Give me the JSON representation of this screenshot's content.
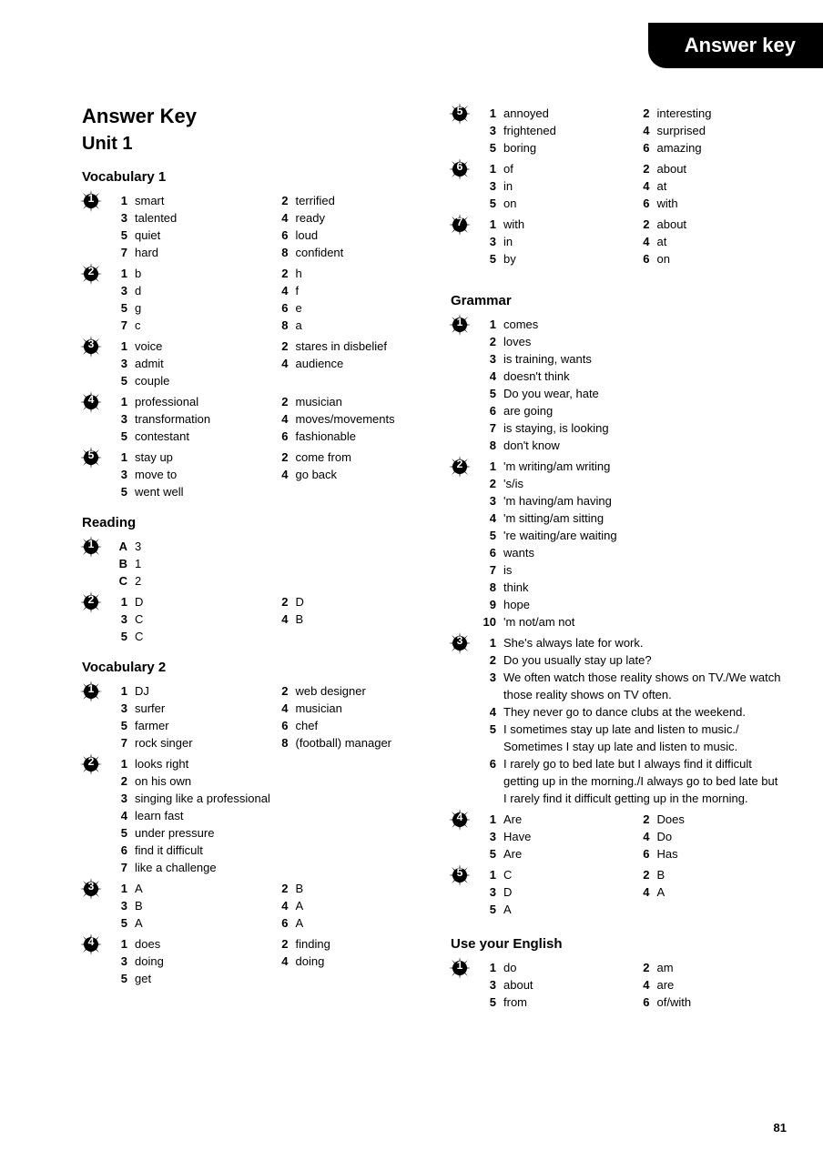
{
  "header_tab": "Answer key",
  "title": "Answer Key",
  "unit": "Unit 1",
  "page_number": "81",
  "left": {
    "vocab1": {
      "heading": "Vocabulary 1",
      "ex": [
        {
          "n": "1",
          "cols": [
            [
              {
                "n": "1",
                "v": "smart"
              },
              {
                "n": "3",
                "v": "talented"
              },
              {
                "n": "5",
                "v": "quiet"
              },
              {
                "n": "7",
                "v": "hard"
              }
            ],
            [
              {
                "n": "2",
                "v": "terrified"
              },
              {
                "n": "4",
                "v": "ready"
              },
              {
                "n": "6",
                "v": "loud"
              },
              {
                "n": "8",
                "v": "confident"
              }
            ]
          ]
        },
        {
          "n": "2",
          "cols": [
            [
              {
                "n": "1",
                "v": "b"
              },
              {
                "n": "3",
                "v": "d"
              },
              {
                "n": "5",
                "v": "g"
              },
              {
                "n": "7",
                "v": "c"
              }
            ],
            [
              {
                "n": "2",
                "v": "h"
              },
              {
                "n": "4",
                "v": "f"
              },
              {
                "n": "6",
                "v": "e"
              },
              {
                "n": "8",
                "v": "a"
              }
            ]
          ]
        },
        {
          "n": "3",
          "cols": [
            [
              {
                "n": "1",
                "v": "voice"
              },
              {
                "n": "3",
                "v": "admit"
              },
              {
                "n": "5",
                "v": "couple"
              }
            ],
            [
              {
                "n": "2",
                "v": "stares in disbelief"
              },
              {
                "n": "4",
                "v": "audience"
              }
            ]
          ]
        },
        {
          "n": "4",
          "cols": [
            [
              {
                "n": "1",
                "v": "professional"
              },
              {
                "n": "3",
                "v": "transformation"
              },
              {
                "n": "5",
                "v": "contestant"
              }
            ],
            [
              {
                "n": "2",
                "v": "musician"
              },
              {
                "n": "4",
                "v": "moves/movements"
              },
              {
                "n": "6",
                "v": "fashionable"
              }
            ]
          ]
        },
        {
          "n": "5",
          "cols": [
            [
              {
                "n": "1",
                "v": "stay up"
              },
              {
                "n": "3",
                "v": "move to"
              },
              {
                "n": "5",
                "v": "went well"
              }
            ],
            [
              {
                "n": "2",
                "v": "come from"
              },
              {
                "n": "4",
                "v": "go back"
              }
            ]
          ]
        }
      ]
    },
    "reading": {
      "heading": "Reading",
      "ex": [
        {
          "n": "1",
          "single": [
            {
              "n": "A",
              "v": "3"
            },
            {
              "n": "B",
              "v": "1"
            },
            {
              "n": "C",
              "v": "2"
            }
          ]
        },
        {
          "n": "2",
          "cols": [
            [
              {
                "n": "1",
                "v": "D"
              },
              {
                "n": "3",
                "v": "C"
              },
              {
                "n": "5",
                "v": "C"
              }
            ],
            [
              {
                "n": "2",
                "v": "D"
              },
              {
                "n": "4",
                "v": "B"
              }
            ]
          ]
        }
      ]
    },
    "vocab2": {
      "heading": "Vocabulary 2",
      "ex": [
        {
          "n": "1",
          "cols": [
            [
              {
                "n": "1",
                "v": "DJ"
              },
              {
                "n": "3",
                "v": "surfer"
              },
              {
                "n": "5",
                "v": "farmer"
              },
              {
                "n": "7",
                "v": "rock singer"
              }
            ],
            [
              {
                "n": "2",
                "v": "web designer"
              },
              {
                "n": "4",
                "v": "musician"
              },
              {
                "n": "6",
                "v": "chef"
              },
              {
                "n": "8",
                "v": "(football) manager"
              }
            ]
          ]
        },
        {
          "n": "2",
          "single": [
            {
              "n": "1",
              "v": "looks right"
            },
            {
              "n": "2",
              "v": "on his own"
            },
            {
              "n": "3",
              "v": "singing like a professional"
            },
            {
              "n": "4",
              "v": "learn fast"
            },
            {
              "n": "5",
              "v": "under pressure"
            },
            {
              "n": "6",
              "v": "find it difficult"
            },
            {
              "n": "7",
              "v": "like a challenge"
            }
          ]
        },
        {
          "n": "3",
          "cols": [
            [
              {
                "n": "1",
                "v": "A"
              },
              {
                "n": "3",
                "v": "B"
              },
              {
                "n": "5",
                "v": "A"
              }
            ],
            [
              {
                "n": "2",
                "v": "B"
              },
              {
                "n": "4",
                "v": "A"
              },
              {
                "n": "6",
                "v": "A"
              }
            ]
          ]
        },
        {
          "n": "4",
          "cols": [
            [
              {
                "n": "1",
                "v": "does"
              },
              {
                "n": "3",
                "v": "doing"
              },
              {
                "n": "5",
                "v": "get"
              }
            ],
            [
              {
                "n": "2",
                "v": "finding"
              },
              {
                "n": "4",
                "v": "doing"
              }
            ]
          ]
        }
      ]
    }
  },
  "right": {
    "top": {
      "ex": [
        {
          "n": "5",
          "cols": [
            [
              {
                "n": "1",
                "v": "annoyed"
              },
              {
                "n": "3",
                "v": "frightened"
              },
              {
                "n": "5",
                "v": "boring"
              }
            ],
            [
              {
                "n": "2",
                "v": "interesting"
              },
              {
                "n": "4",
                "v": "surprised"
              },
              {
                "n": "6",
                "v": "amazing"
              }
            ]
          ]
        },
        {
          "n": "6",
          "cols": [
            [
              {
                "n": "1",
                "v": "of"
              },
              {
                "n": "3",
                "v": "in"
              },
              {
                "n": "5",
                "v": "on"
              }
            ],
            [
              {
                "n": "2",
                "v": "about"
              },
              {
                "n": "4",
                "v": "at"
              },
              {
                "n": "6",
                "v": "with"
              }
            ]
          ]
        },
        {
          "n": "7",
          "cols": [
            [
              {
                "n": "1",
                "v": "with"
              },
              {
                "n": "3",
                "v": "in"
              },
              {
                "n": "5",
                "v": "by"
              }
            ],
            [
              {
                "n": "2",
                "v": "about"
              },
              {
                "n": "4",
                "v": "at"
              },
              {
                "n": "6",
                "v": "on"
              }
            ]
          ]
        }
      ]
    },
    "grammar": {
      "heading": "Grammar",
      "ex": [
        {
          "n": "1",
          "single": [
            {
              "n": "1",
              "v": "comes"
            },
            {
              "n": "2",
              "v": "loves"
            },
            {
              "n": "3",
              "v": "is training, wants"
            },
            {
              "n": "4",
              "v": "doesn't think"
            },
            {
              "n": "5",
              "v": "Do you wear, hate"
            },
            {
              "n": "6",
              "v": "are going"
            },
            {
              "n": "7",
              "v": "is staying, is looking"
            },
            {
              "n": "8",
              "v": "don't know"
            }
          ]
        },
        {
          "n": "2",
          "single": [
            {
              "n": "1",
              "v": "'m writing/am writing"
            },
            {
              "n": "2",
              "v": "'s/is"
            },
            {
              "n": "3",
              "v": "'m having/am having"
            },
            {
              "n": "4",
              "v": "'m sitting/am sitting"
            },
            {
              "n": "5",
              "v": "'re waiting/are waiting"
            },
            {
              "n": "6",
              "v": "wants"
            },
            {
              "n": "7",
              "v": "is"
            },
            {
              "n": "8",
              "v": "think"
            },
            {
              "n": "9",
              "v": "hope"
            },
            {
              "n": "10",
              "v": "'m not/am not"
            }
          ]
        },
        {
          "n": "3",
          "single": [
            {
              "n": "1",
              "v": "She's always late for work."
            },
            {
              "n": "2",
              "v": "Do you usually stay up late?"
            },
            {
              "n": "3",
              "v": "We often watch those reality shows on TV./We watch those reality shows on TV often."
            },
            {
              "n": "4",
              "v": "They never go to dance clubs at the weekend."
            },
            {
              "n": "5",
              "v": "I sometimes stay up late and listen to music./ Sometimes I stay up late and listen to music."
            },
            {
              "n": "6",
              "v": "I rarely go to bed late but I always find it difficult getting up in the morning./I always go to bed late but I rarely find it difficult getting up in the morning."
            }
          ]
        },
        {
          "n": "4",
          "cols": [
            [
              {
                "n": "1",
                "v": "Are"
              },
              {
                "n": "3",
                "v": "Have"
              },
              {
                "n": "5",
                "v": "Are"
              }
            ],
            [
              {
                "n": "2",
                "v": "Does"
              },
              {
                "n": "4",
                "v": "Do"
              },
              {
                "n": "6",
                "v": "Has"
              }
            ]
          ]
        },
        {
          "n": "5",
          "cols": [
            [
              {
                "n": "1",
                "v": "C"
              },
              {
                "n": "3",
                "v": "D"
              },
              {
                "n": "5",
                "v": "A"
              }
            ],
            [
              {
                "n": "2",
                "v": "B"
              },
              {
                "n": "4",
                "v": "A"
              }
            ]
          ]
        }
      ]
    },
    "use": {
      "heading": "Use your English",
      "ex": [
        {
          "n": "1",
          "cols": [
            [
              {
                "n": "1",
                "v": "do"
              },
              {
                "n": "3",
                "v": "about"
              },
              {
                "n": "5",
                "v": "from"
              }
            ],
            [
              {
                "n": "2",
                "v": "am"
              },
              {
                "n": "4",
                "v": "are"
              },
              {
                "n": "6",
                "v": "of/with"
              }
            ]
          ]
        }
      ]
    }
  }
}
